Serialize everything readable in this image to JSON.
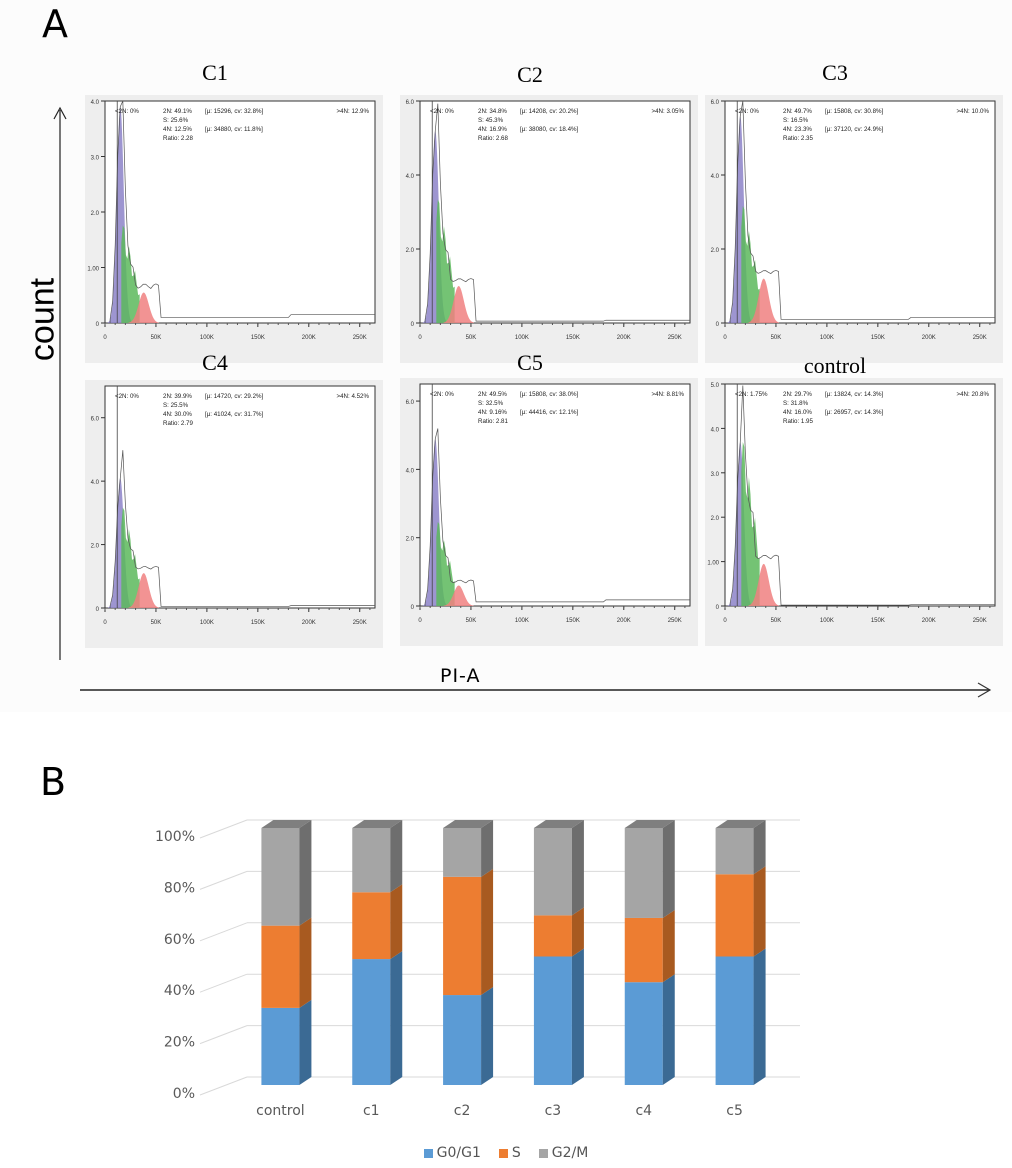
{
  "panel_a": {
    "letter": "A",
    "y_axis_label": "count",
    "x_axis_label": "PI-A",
    "x_ticks": [
      "0",
      "50K",
      "100K",
      "150K",
      "200K",
      "250K"
    ],
    "colors": {
      "g1": "#8c82c8",
      "s": "#5cb85c",
      "g2": "#f08080",
      "trace": "#555555"
    },
    "panels": [
      {
        "title": "C1",
        "y_ticks": [
          "0",
          "1.00",
          "2.0",
          "3.0",
          "4.0"
        ],
        "ymax": 4.0,
        "lt2n": "<2N: 0%",
        "n2": "2N: 49.1%",
        "n2_stats": "[μ: 15296, cv: 32.8%]",
        "s": "S: 25.6%",
        "n4": "4N: 12.5%",
        "n4_stats": "[μ: 34880, cv: 11.8%]",
        "ratio": "Ratio: 2.28",
        "gt4n": ">4N: 12.9%",
        "peak": 3.9,
        "s_level": 2.0,
        "g2_peak": 0.55,
        "tail": 0.1
      },
      {
        "title": "C2",
        "y_ticks": [
          "0",
          "2.0",
          "4.0",
          "6.0"
        ],
        "ymax": 6.0,
        "lt2n": "<2N: 0%",
        "n2": "2N: 34.8%",
        "n2_stats": "[μ: 14208, cv: 20.2%]",
        "s": "S: 45.3%",
        "n4": "4N: 16.9%",
        "n4_stats": "[μ: 38080, cv: 18.4%]",
        "ratio": "Ratio: 2.68",
        "gt4n": ">4N: 3.05%",
        "peak": 5.2,
        "s_level": 3.8,
        "g2_peak": 1.0,
        "tail": 0.05
      },
      {
        "title": "C3",
        "y_ticks": [
          "0",
          "2.0",
          "4.0",
          "6.0"
        ],
        "ymax": 6.0,
        "lt2n": "<2N: 0%",
        "n2": "2N: 49.7%",
        "n2_stats": "[μ: 15808, cv: 30.8%]",
        "s": "S: 16.5%",
        "n4": "4N: 23.3%",
        "n4_stats": "[μ: 37120, cv: 24.9%]",
        "ratio": "Ratio: 2.35",
        "gt4n": ">4N: 10.0%",
        "peak": 5.6,
        "s_level": 3.6,
        "g2_peak": 1.2,
        "tail": 0.1
      },
      {
        "title": "C4",
        "y_ticks": [
          "0",
          "2.0",
          "4.0",
          "6.0"
        ],
        "ymax": 7.0,
        "lt2n": "<2N: 0%",
        "n2": "2N: 39.9%",
        "n2_stats": "[μ: 14720, cv: 29.2%]",
        "s": "S: 25.5%",
        "n4": "4N: 30.0%",
        "n4_stats": "[μ: 41024, cv: 31.7%]",
        "ratio": "Ratio: 2.79",
        "gt4n": ">4N: 4.52%",
        "peak": 4.1,
        "s_level": 3.6,
        "g2_peak": 1.1,
        "tail": 0.05
      },
      {
        "title": "C5",
        "y_ticks": [
          "0",
          "2.0",
          "4.0",
          "6.0"
        ],
        "ymax": 6.5,
        "lt2n": "<2N: 0%",
        "n2": "2N: 49.5%",
        "n2_stats": "[μ: 15808, cv: 38.0%]",
        "s": "S: 32.5%",
        "n4": "4N: 9.16%",
        "n4_stats": "[μ: 44416, cv: 12.1%]",
        "ratio": "Ratio: 2.81",
        "gt4n": ">4N: 8.81%",
        "peak": 4.9,
        "s_level": 2.8,
        "g2_peak": 0.6,
        "tail": 0.12
      },
      {
        "title": "control",
        "y_ticks": [
          "0",
          "1.00",
          "2.0",
          "3.0",
          "4.0",
          "5.0"
        ],
        "ymax": 5.0,
        "lt2n": "<2N: 1.75%",
        "n2": "2N: 29.7%",
        "n2_stats": "[μ: 13824, cv: 14.3%]",
        "s": "S: 31.8%",
        "n4": "4N: 16.0%",
        "n4_stats": "[μ: 26957, cv: 14.3%]",
        "ratio": "Ratio: 1.95",
        "gt4n": ">4N: 20.8%",
        "peak": 3.7,
        "s_level": 4.2,
        "g2_peak": 0.95,
        "tail": 0.02
      }
    ]
  },
  "chart_data": {
    "type": "bar",
    "stacked": true,
    "style": "3d-column-100pct",
    "letter": "B",
    "title": "",
    "xlabel": "",
    "ylabel": "",
    "ylim": [
      0,
      100
    ],
    "y_ticks": [
      "0%",
      "20%",
      "40%",
      "60%",
      "80%",
      "100%"
    ],
    "grid": true,
    "legend_position": "bottom",
    "categories": [
      "control",
      "c1",
      "c2",
      "c3",
      "c4",
      "c5"
    ],
    "series": [
      {
        "name": "G0/G1",
        "color": "#5b9bd5",
        "side": "#3b6a94",
        "values": [
          30,
          49,
          35,
          50,
          40,
          50
        ]
      },
      {
        "name": "S",
        "color": "#ed7d31",
        "side": "#a85a20",
        "values": [
          32,
          26,
          46,
          16,
          25,
          32
        ]
      },
      {
        "name": "G2/M",
        "color": "#a5a5a5",
        "side": "#6e6e6e",
        "values": [
          38,
          25,
          19,
          34,
          35,
          18
        ]
      }
    ]
  }
}
